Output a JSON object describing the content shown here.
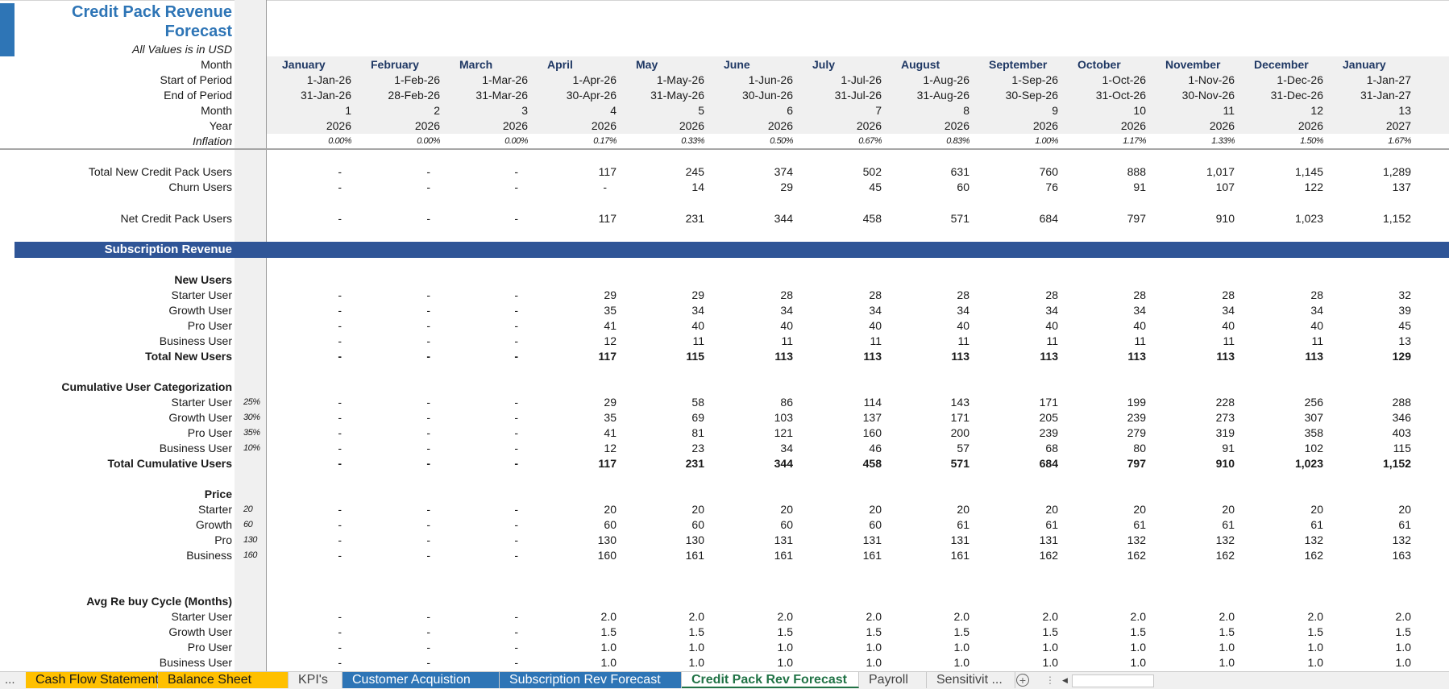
{
  "title": {
    "line1": "Credit Pack Revenue",
    "line2": "Forecast",
    "subtitle": "All Values is in USD"
  },
  "header_labels": {
    "month": "Month",
    "start": "Start of Period",
    "end": "End of Period",
    "month_num": "Month",
    "year": "Year",
    "inflation": "Inflation"
  },
  "columns": [
    {
      "month": "January",
      "start": "1-Jan-26",
      "end": "31-Jan-26",
      "num": "1",
      "year": "2026",
      "inflation": "0.00%"
    },
    {
      "month": "February",
      "start": "1-Feb-26",
      "end": "28-Feb-26",
      "num": "2",
      "year": "2026",
      "inflation": "0.00%"
    },
    {
      "month": "March",
      "start": "1-Mar-26",
      "end": "31-Mar-26",
      "num": "3",
      "year": "2026",
      "inflation": "0.00%"
    },
    {
      "month": "April",
      "start": "1-Apr-26",
      "end": "30-Apr-26",
      "num": "4",
      "year": "2026",
      "inflation": "0.17%"
    },
    {
      "month": "May",
      "start": "1-May-26",
      "end": "31-May-26",
      "num": "5",
      "year": "2026",
      "inflation": "0.33%"
    },
    {
      "month": "June",
      "start": "1-Jun-26",
      "end": "30-Jun-26",
      "num": "6",
      "year": "2026",
      "inflation": "0.50%"
    },
    {
      "month": "July",
      "start": "1-Jul-26",
      "end": "31-Jul-26",
      "num": "7",
      "year": "2026",
      "inflation": "0.67%"
    },
    {
      "month": "August",
      "start": "1-Aug-26",
      "end": "31-Aug-26",
      "num": "8",
      "year": "2026",
      "inflation": "0.83%"
    },
    {
      "month": "September",
      "start": "1-Sep-26",
      "end": "30-Sep-26",
      "num": "9",
      "year": "2026",
      "inflation": "1.00%"
    },
    {
      "month": "October",
      "start": "1-Oct-26",
      "end": "31-Oct-26",
      "num": "10",
      "year": "2026",
      "inflation": "1.17%"
    },
    {
      "month": "November",
      "start": "1-Nov-26",
      "end": "30-Nov-26",
      "num": "11",
      "year": "2026",
      "inflation": "1.33%"
    },
    {
      "month": "December",
      "start": "1-Dec-26",
      "end": "31-Dec-26",
      "num": "12",
      "year": "2026",
      "inflation": "1.50%"
    },
    {
      "month": "January",
      "start": "1-Jan-27",
      "end": "31-Jan-27",
      "num": "13",
      "year": "2027",
      "inflation": "1.67%"
    }
  ],
  "summary": {
    "total_new": {
      "label": "Total New Credit Pack Users",
      "values": [
        "-",
        "-",
        "-",
        "117",
        "245",
        "374",
        "502",
        "631",
        "760",
        "888",
        "1,017",
        "1,145",
        "1,289"
      ]
    },
    "churn": {
      "label": "Churn Users",
      "values": [
        "-",
        "-",
        "-",
        "-",
        "14",
        "29",
        "45",
        "60",
        "76",
        "91",
        "107",
        "122",
        "137"
      ]
    },
    "net": {
      "label": "Net Credit Pack Users",
      "values": [
        "-",
        "-",
        "-",
        "117",
        "231",
        "344",
        "458",
        "571",
        "684",
        "797",
        "910",
        "1,023",
        "1,152"
      ]
    }
  },
  "band": {
    "label": "Subscription Revenue"
  },
  "new_users": {
    "header": "New Users",
    "rows": [
      {
        "label": "Starter User",
        "values": [
          "-",
          "-",
          "-",
          "29",
          "29",
          "28",
          "28",
          "28",
          "28",
          "28",
          "28",
          "28",
          "32"
        ]
      },
      {
        "label": "Growth User",
        "values": [
          "-",
          "-",
          "-",
          "35",
          "34",
          "34",
          "34",
          "34",
          "34",
          "34",
          "34",
          "34",
          "39"
        ]
      },
      {
        "label": "Pro User",
        "values": [
          "-",
          "-",
          "-",
          "41",
          "40",
          "40",
          "40",
          "40",
          "40",
          "40",
          "40",
          "40",
          "45"
        ]
      },
      {
        "label": "Business User",
        "values": [
          "-",
          "-",
          "-",
          "12",
          "11",
          "11",
          "11",
          "11",
          "11",
          "11",
          "11",
          "11",
          "13"
        ]
      }
    ],
    "total": {
      "label": "Total New Users",
      "values": [
        "-",
        "-",
        "-",
        "117",
        "115",
        "113",
        "113",
        "113",
        "113",
        "113",
        "113",
        "113",
        "129"
      ]
    }
  },
  "cumulative": {
    "header": "Cumulative User Categorization",
    "rows": [
      {
        "label": "Starter User",
        "pct": "25%",
        "values": [
          "-",
          "-",
          "-",
          "29",
          "58",
          "86",
          "114",
          "143",
          "171",
          "199",
          "228",
          "256",
          "288"
        ]
      },
      {
        "label": "Growth User",
        "pct": "30%",
        "values": [
          "-",
          "-",
          "-",
          "35",
          "69",
          "103",
          "137",
          "171",
          "205",
          "239",
          "273",
          "307",
          "346"
        ]
      },
      {
        "label": "Pro User",
        "pct": "35%",
        "values": [
          "-",
          "-",
          "-",
          "41",
          "81",
          "121",
          "160",
          "200",
          "239",
          "279",
          "319",
          "358",
          "403"
        ]
      },
      {
        "label": "Business User",
        "pct": "10%",
        "values": [
          "-",
          "-",
          "-",
          "12",
          "23",
          "34",
          "46",
          "57",
          "68",
          "80",
          "91",
          "102",
          "115"
        ]
      }
    ],
    "total": {
      "label": "Total Cumulative Users",
      "values": [
        "-",
        "-",
        "-",
        "117",
        "231",
        "344",
        "458",
        "571",
        "684",
        "797",
        "910",
        "1,023",
        "1,152"
      ]
    }
  },
  "price": {
    "header": "Price",
    "rows": [
      {
        "label": "Starter",
        "base": "20",
        "values": [
          "-",
          "-",
          "-",
          "20",
          "20",
          "20",
          "20",
          "20",
          "20",
          "20",
          "20",
          "20",
          "20"
        ]
      },
      {
        "label": "Growth",
        "base": "60",
        "values": [
          "-",
          "-",
          "-",
          "60",
          "60",
          "60",
          "60",
          "61",
          "61",
          "61",
          "61",
          "61",
          "61"
        ]
      },
      {
        "label": "Pro",
        "base": "130",
        "values": [
          "-",
          "-",
          "-",
          "130",
          "130",
          "131",
          "131",
          "131",
          "131",
          "132",
          "132",
          "132",
          "132"
        ]
      },
      {
        "label": "Business",
        "base": "160",
        "values": [
          "-",
          "-",
          "-",
          "160",
          "161",
          "161",
          "161",
          "161",
          "162",
          "162",
          "162",
          "162",
          "163"
        ]
      }
    ]
  },
  "rebuy": {
    "header": "Avg Re buy Cycle (Months)",
    "rows": [
      {
        "label": "Starter User",
        "values": [
          "-",
          "-",
          "-",
          "2.0",
          "2.0",
          "2.0",
          "2.0",
          "2.0",
          "2.0",
          "2.0",
          "2.0",
          "2.0",
          "2.0"
        ]
      },
      {
        "label": "Growth User",
        "values": [
          "-",
          "-",
          "-",
          "1.5",
          "1.5",
          "1.5",
          "1.5",
          "1.5",
          "1.5",
          "1.5",
          "1.5",
          "1.5",
          "1.5"
        ]
      },
      {
        "label": "Pro User",
        "values": [
          "-",
          "-",
          "-",
          "1.0",
          "1.0",
          "1.0",
          "1.0",
          "1.0",
          "1.0",
          "1.0",
          "1.0",
          "1.0",
          "1.0"
        ]
      },
      {
        "label": "Business User",
        "values": [
          "-",
          "-",
          "-",
          "1.0",
          "1.0",
          "1.0",
          "1.0",
          "1.0",
          "1.0",
          "1.0",
          "1.0",
          "1.0",
          "1.0"
        ]
      }
    ]
  },
  "tabs": {
    "ellipsis": "...",
    "items": [
      {
        "label": "Cash Flow Statement",
        "style": "yellow"
      },
      {
        "label": "Balance Sheet",
        "style": "yellow"
      },
      {
        "label": "KPI's",
        "style": "plain"
      },
      {
        "label": "Customer Acquistion",
        "style": "blue"
      },
      {
        "label": "Subscription Rev Forecast",
        "style": "blue"
      },
      {
        "label": "Credit Pack Rev Forecast",
        "style": "active"
      },
      {
        "label": "Payroll",
        "style": "plain"
      },
      {
        "label": "Sensitivit ...",
        "style": "plain"
      }
    ],
    "add_icon": "+"
  },
  "colors": {
    "title_blue": "#2e75b6",
    "band_blue": "#2f5597",
    "month_header": "#1f3864",
    "tab_yellow": "#ffc000",
    "tab_blue": "#2e75b6",
    "active_tab_green": "#217346"
  }
}
